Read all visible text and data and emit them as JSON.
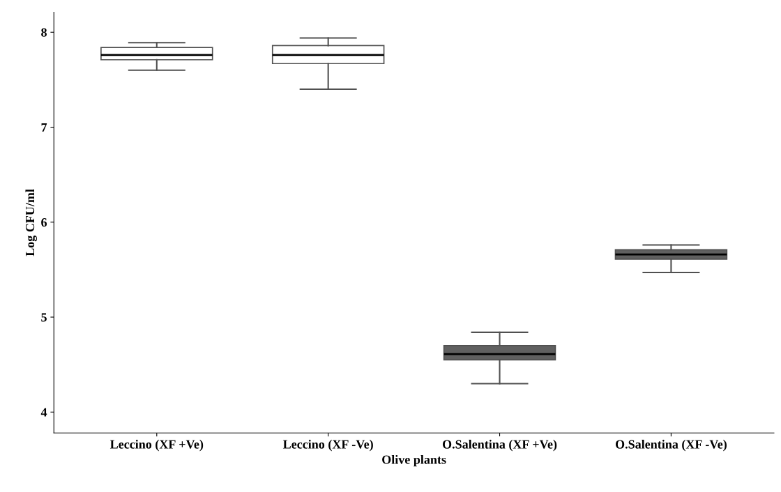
{
  "chart_data": {
    "type": "box",
    "xlabel": "Olive plants",
    "ylabel": "Log CFU/ml",
    "categories": [
      "Leccino (XF +Ve)",
      "Leccino (XF -Ve)",
      "O.Salentina (XF +Ve)",
      "O.Salentina (XF -Ve)"
    ],
    "boxes": [
      {
        "low": 7.6,
        "q1": 7.71,
        "median": 7.76,
        "q3": 7.84,
        "high": 7.89
      },
      {
        "low": 7.4,
        "q1": 7.67,
        "median": 7.76,
        "q3": 7.86,
        "high": 7.94
      },
      {
        "low": 4.3,
        "q1": 4.55,
        "median": 4.61,
        "q3": 4.7,
        "high": 4.84
      },
      {
        "low": 5.47,
        "q1": 5.61,
        "median": 5.66,
        "q3": 5.71,
        "high": 5.76
      }
    ],
    "colors": [
      "#ffffff",
      "#ffffff",
      "#606060",
      "#606060"
    ],
    "ylim": [
      3.78,
      8.21
    ],
    "yticks": [
      4,
      5,
      6,
      7,
      8
    ],
    "grid": false,
    "legend": false
  }
}
